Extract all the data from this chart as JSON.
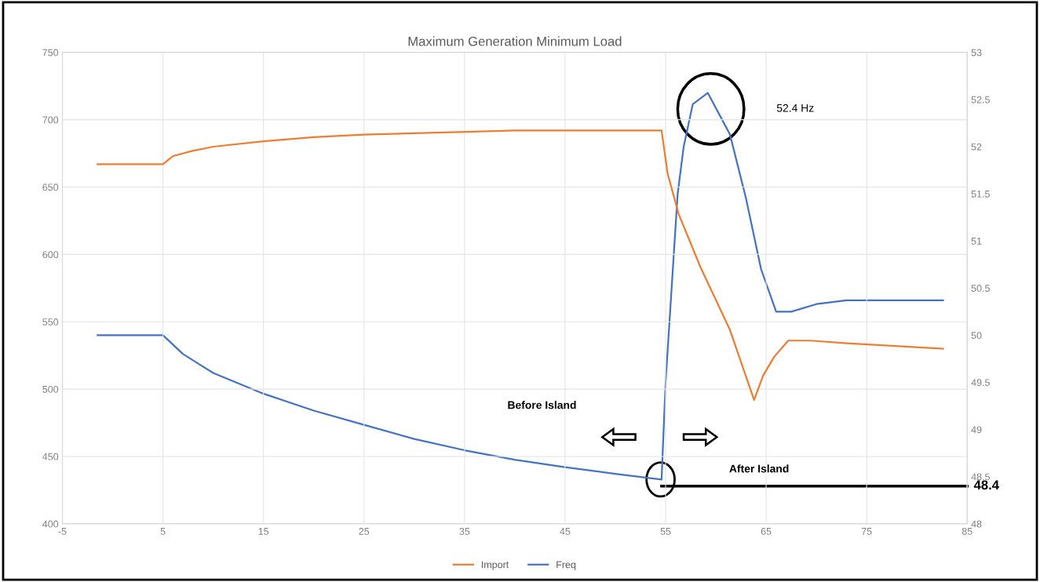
{
  "chart_data": {
    "type": "line",
    "title": "Maximum Generation Minimum Load",
    "series": [
      {
        "name": "Import",
        "color": "#ed7d31",
        "axis": "y",
        "x": [
          -1.5,
          5,
          5.5,
          6,
          8,
          10,
          15,
          20,
          25,
          30,
          35,
          40,
          45,
          50,
          54.6,
          55.2,
          56.3,
          58.5,
          61.4,
          63.8,
          64.7,
          65.8,
          67.2,
          69.4,
          73,
          82.6
        ],
        "values": [
          667,
          667,
          670,
          673,
          677,
          680,
          684,
          687,
          689,
          690,
          691,
          692,
          692,
          692,
          692,
          660,
          630,
          590,
          544,
          492,
          510,
          524,
          536,
          536,
          534,
          530
        ]
      },
      {
        "name": "Freq",
        "color": "#4472c4",
        "axis": "y2",
        "x": [
          -1.5,
          5,
          7,
          10,
          15,
          20,
          25,
          30,
          35,
          40,
          45,
          50,
          54.6,
          55.0,
          55.6,
          56.2,
          56.8,
          57.7,
          59.2,
          61.4,
          63,
          64.5,
          66,
          67.5,
          70,
          73,
          82.6
        ],
        "values": [
          50,
          50,
          49.8,
          49.6,
          49.38,
          49.2,
          49.05,
          48.9,
          48.78,
          48.68,
          48.6,
          48.53,
          48.47,
          49.5,
          50.5,
          51.5,
          52.0,
          52.45,
          52.57,
          52.13,
          51.45,
          50.7,
          50.25,
          50.25,
          50.33,
          50.37,
          50.37
        ]
      },
      {
        "color": "#000000",
        "axis": "y2",
        "x": [
          54.6,
          85
        ],
        "values": [
          48.4,
          48.4
        ]
      }
    ],
    "xlim": [
      -5,
      85
    ],
    "xticks": [
      -5,
      5,
      15,
      25,
      35,
      45,
      55,
      65,
      75,
      85
    ],
    "ylim": [
      400,
      750
    ],
    "yticks": [
      400,
      450,
      500,
      550,
      600,
      650,
      700,
      750
    ],
    "y2lim": [
      48,
      53
    ],
    "y2ticks": [
      48,
      48.5,
      49,
      49.5,
      50,
      50.5,
      51,
      51.5,
      52,
      52.5,
      53
    ],
    "annotations": [
      "52.4 Hz",
      "Before Island",
      "After Island",
      "48.4"
    ],
    "grid": true,
    "legend": "bottom",
    "marker": "none",
    "line_style": "solid"
  }
}
